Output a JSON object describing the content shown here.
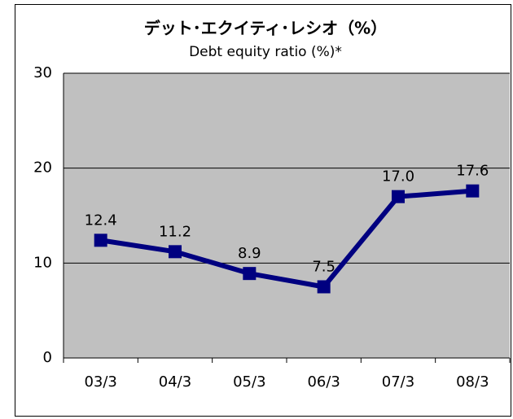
{
  "chart_data": {
    "type": "line",
    "title": "デット･エクイティ･レシオ（%）",
    "subtitle": "Debt equity ratio (%)*",
    "categories": [
      "03/3",
      "04/3",
      "05/3",
      "06/3",
      "07/3",
      "08/3"
    ],
    "values": [
      12.4,
      11.2,
      8.9,
      7.5,
      17.0,
      17.6
    ],
    "value_labels": [
      "12.4",
      "11.2",
      "8.9",
      "7.5",
      "17.0",
      "17.6"
    ],
    "color": "#000080",
    "ylim": [
      0,
      30
    ],
    "yticks": [
      0,
      10,
      20,
      30
    ],
    "grid": true
  }
}
